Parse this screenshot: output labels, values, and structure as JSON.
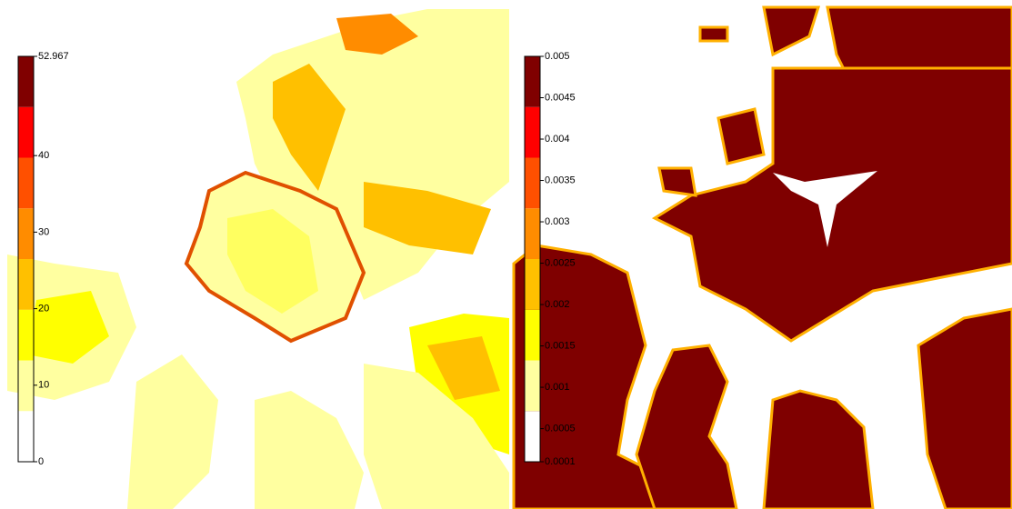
{
  "panels": [
    {
      "colorbar": {
        "range": [
          0,
          52.967
        ],
        "ticks": [
          52.967,
          40,
          30,
          20,
          10,
          0
        ],
        "colors": [
          "#ffffff",
          "#ffffa0",
          "#ffff00",
          "#ffc000",
          "#ff8c00",
          "#ff5000",
          "#ff0000",
          "#800000"
        ]
      }
    },
    {
      "colorbar": {
        "range": [
          0.0001,
          0.005
        ],
        "ticks": [
          0.005,
          0.0045,
          0.004,
          0.0035,
          0.003,
          0.0025,
          0.002,
          0.0015,
          0.001,
          0.0005,
          0.0001
        ],
        "colors": [
          "#ffffff",
          "#ffffa0",
          "#ffff00",
          "#ffc000",
          "#ff8c00",
          "#ff5000",
          "#ff0000",
          "#800000"
        ]
      }
    }
  ]
}
